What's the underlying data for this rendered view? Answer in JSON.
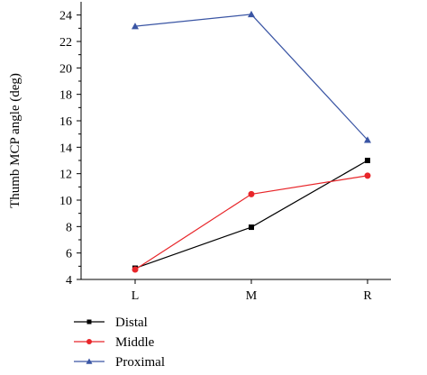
{
  "chart_data": {
    "type": "line",
    "categories": [
      "L",
      "M",
      "R"
    ],
    "ylabel": "Thumb MCP angle (deg)",
    "xlabel": "",
    "ylim": [
      4,
      25
    ],
    "yticks": [
      4,
      6,
      8,
      10,
      12,
      14,
      16,
      18,
      20,
      22,
      24
    ],
    "grid": false,
    "legend_position": "bottom-left",
    "series": [
      {
        "name": "Distal",
        "values": [
          4.85,
          7.95,
          13.0
        ],
        "color": "#000000",
        "marker": "square"
      },
      {
        "name": "Middle",
        "values": [
          4.75,
          10.45,
          11.85
        ],
        "color": "#e8262a",
        "marker": "circle"
      },
      {
        "name": "Proximal",
        "values": [
          23.15,
          24.05,
          14.55
        ],
        "color": "#3a55a4",
        "marker": "triangle"
      }
    ]
  }
}
